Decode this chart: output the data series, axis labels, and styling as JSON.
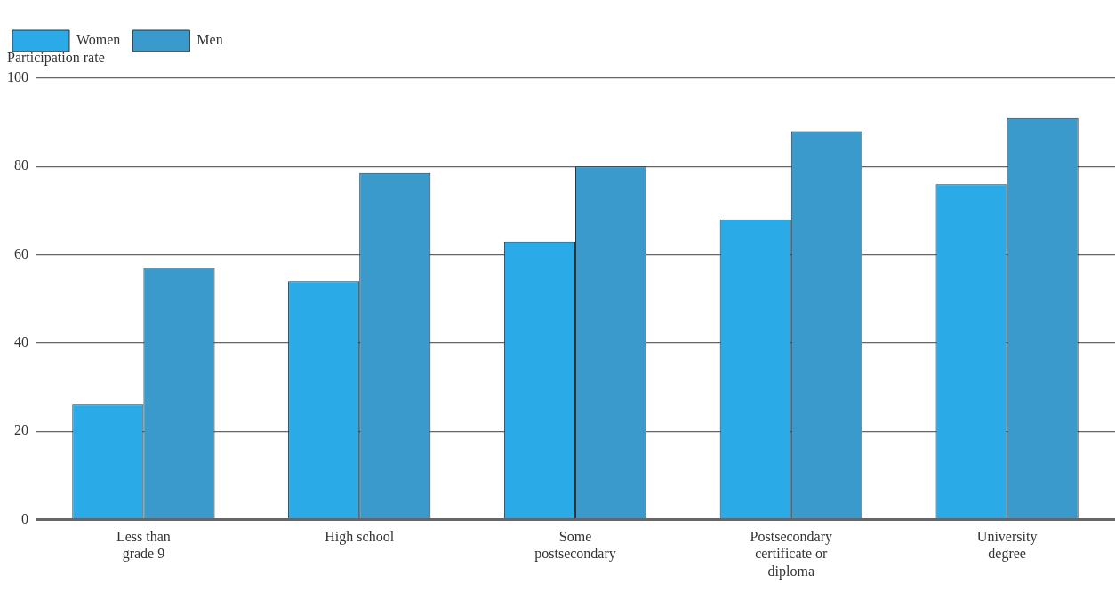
{
  "chart_data": {
    "type": "bar",
    "ylabel": "Participation rate",
    "categories": [
      "Less than grade 9",
      "High school",
      "Some postsecondary",
      "Postsecondary certificate or diploma",
      "University degree"
    ],
    "series": [
      {
        "name": "Women",
        "color": "#2aaae6",
        "values": [
          26,
          54,
          63,
          68,
          76
        ]
      },
      {
        "name": "Men",
        "color": "#3a9acb",
        "values": [
          57,
          78.5,
          80,
          88,
          91
        ]
      }
    ],
    "ylim": [
      0,
      100
    ],
    "yticks": [
      0,
      20,
      40,
      60,
      80,
      100
    ],
    "grid": "y",
    "legend": "top left"
  }
}
